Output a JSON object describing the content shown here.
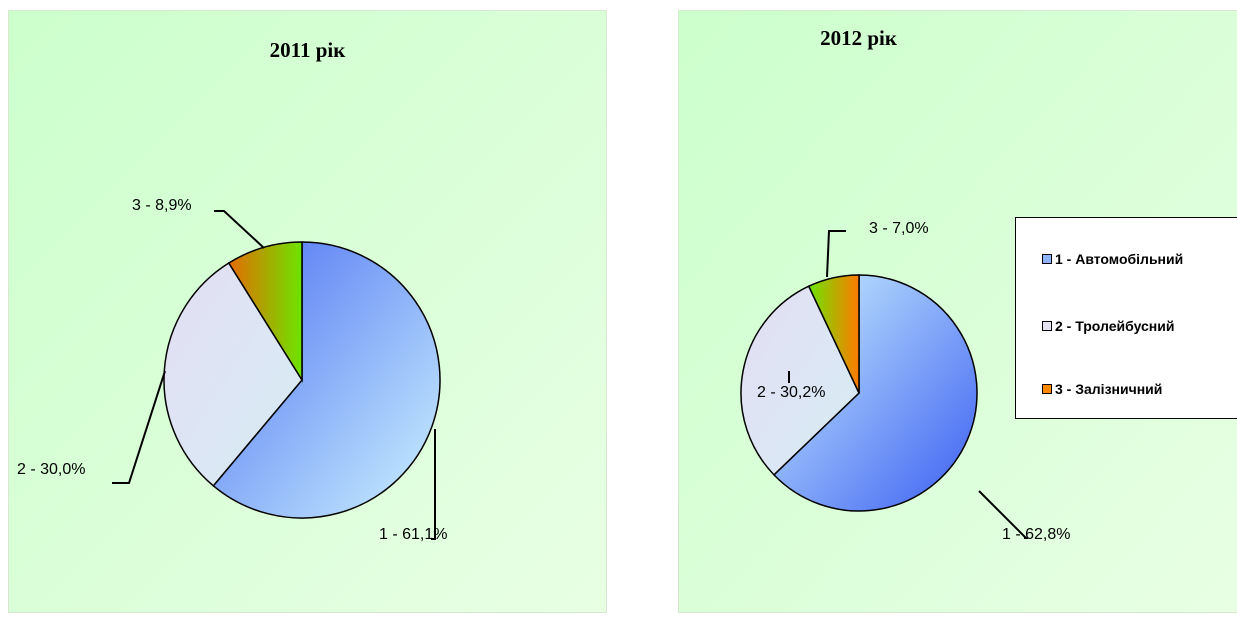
{
  "chart_data": [
    {
      "type": "pie",
      "title": "2011 рік",
      "slices": [
        {
          "value": 61.1,
          "label": "1 - 61,1%"
        },
        {
          "value": 30.0,
          "label": "2 - 30,0%"
        },
        {
          "value": 8.9,
          "label": "3 - 8,9%"
        }
      ]
    },
    {
      "type": "pie",
      "title": "2012 рік",
      "slices": [
        {
          "value": 62.8,
          "label": "1 - 62,8%"
        },
        {
          "value": 30.2,
          "label": "2 - 30,2%"
        },
        {
          "value": 7.0,
          "label": "3 - 7,0%"
        }
      ],
      "legend": {
        "position": "right",
        "entries": [
          "1 - Автомобільний",
          "2 - Тролейбусний",
          "3 - Залізничний"
        ]
      }
    }
  ],
  "colors": {
    "background": "#ccffcc",
    "slice_1": "#8fb4ff",
    "slice_2": "#e6e2f2",
    "slice_3": "#ff8a00",
    "slice_3_alt": "#55d400"
  }
}
